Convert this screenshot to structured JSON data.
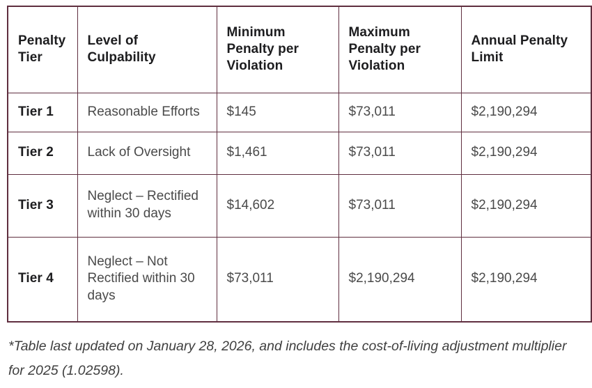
{
  "table": {
    "border_color": "#5f2e3f",
    "header_text_color": "#1d1d1f",
    "body_text_color": "#4a4a4a",
    "columns": [
      "Penalty Tier",
      "Level of Culpability",
      "Minimum Penalty per Violation",
      "Maximum Penalty per Violation",
      "Annual Penalty Limit"
    ],
    "rows": [
      {
        "tier": "Tier 1",
        "culpability": "Reasonable Efforts",
        "min_penalty": "$145",
        "max_penalty": "$73,011",
        "annual_limit": "$2,190,294"
      },
      {
        "tier": "Tier 2",
        "culpability": "Lack of Oversight",
        "min_penalty": "$1,461",
        "max_penalty": "$73,011",
        "annual_limit": "$2,190,294"
      },
      {
        "tier": "Tier 3",
        "culpability": "Neglect – Rectified within 30 days",
        "min_penalty": "$14,602",
        "max_penalty": "$73,011",
        "annual_limit": "$2,190,294"
      },
      {
        "tier": "Tier 4",
        "culpability": "Neglect – Not Rectified within 30 days",
        "min_penalty": "$73,011",
        "max_penalty": "$2,190,294",
        "annual_limit": "$2,190,294"
      }
    ]
  },
  "footnote": "*Table last updated on January 28, 2026, and includes the cost-of-living adjustment multiplier for 2025 (1.02598)."
}
